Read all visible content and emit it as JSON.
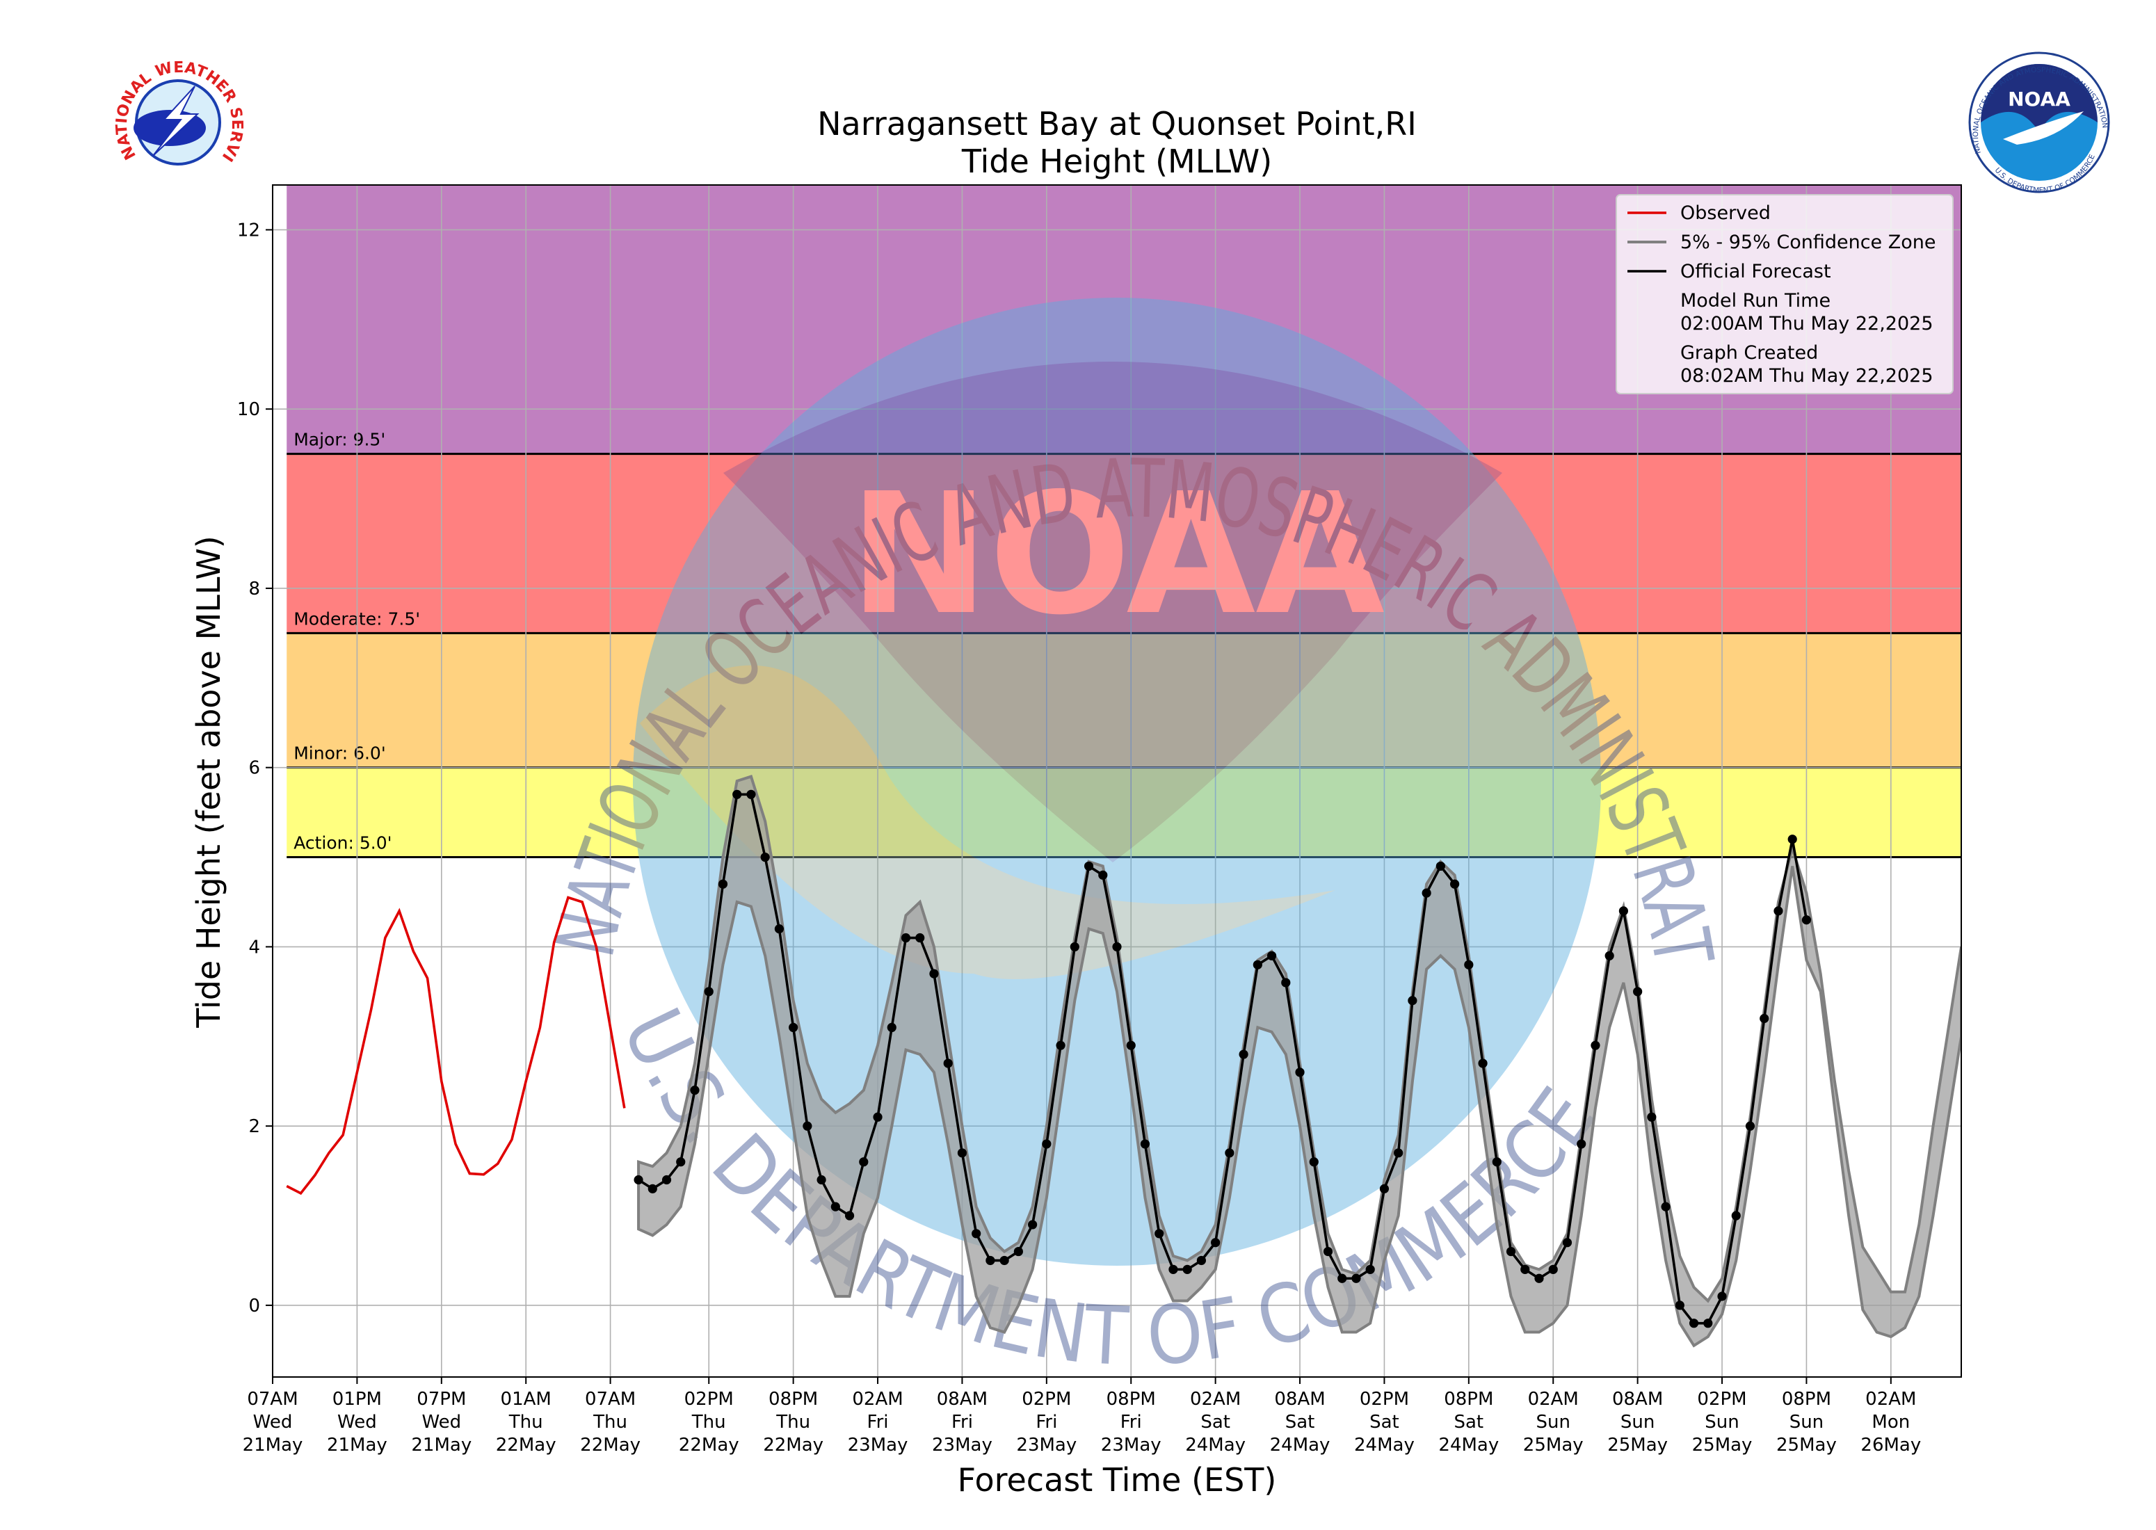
{
  "chart_data": {
    "type": "line",
    "title": "Narragansett Bay at Quonset Point,RI",
    "subtitle": "Tide Height (MLLW)",
    "xlabel": "Forecast Time (EST)",
    "ylabel": "Tide Height (feet above MLLW)",
    "xlim": [
      0,
      120
    ],
    "ylim": [
      -0.8,
      12.5
    ],
    "grid": true,
    "legend": "upper right",
    "yticks": [
      0,
      2,
      4,
      6,
      8,
      10,
      12
    ],
    "xticks": [
      {
        "value": 0,
        "label": "07AM\nWed\n21May"
      },
      {
        "value": 6,
        "label": "01PM\nWed\n21May"
      },
      {
        "value": 12,
        "label": "07PM\nWed\n21May"
      },
      {
        "value": 18,
        "label": "01AM\nThu\n22May"
      },
      {
        "value": 24,
        "label": "07AM\nThu\n22May"
      },
      {
        "value": 31,
        "label": "02PM\nThu\n22May"
      },
      {
        "value": 37,
        "label": "08PM\nThu\n22May"
      },
      {
        "value": 43,
        "label": "02AM\nFri\n23May"
      },
      {
        "value": 49,
        "label": "08AM\nFri\n23May"
      },
      {
        "value": 55,
        "label": "02PM\nFri\n23May"
      },
      {
        "value": 61,
        "label": "08PM\nFri\n23May"
      },
      {
        "value": 67,
        "label": "02AM\nSat\n24May"
      },
      {
        "value": 73,
        "label": "08AM\nSat\n24May"
      },
      {
        "value": 79,
        "label": "02PM\nSat\n24May"
      },
      {
        "value": 85,
        "label": "08PM\nSat\n24May"
      },
      {
        "value": 91,
        "label": "02AM\nSun\n25May"
      },
      {
        "value": 97,
        "label": "08AM\nSun\n25May"
      },
      {
        "value": 103,
        "label": "02PM\nSun\n25May"
      },
      {
        "value": 109,
        "label": "08PM\nSun\n25May"
      },
      {
        "value": 115,
        "label": "02AM\nMon\n26May"
      }
    ],
    "flood_levels": [
      {
        "label": "Action: 5.0'",
        "value": 5,
        "color": "#ffff80"
      },
      {
        "label": "Minor: 6.0'",
        "value": 6,
        "color": "#ffd280"
      },
      {
        "label": "Moderate: 7.5'",
        "value": 7.5,
        "color": "#ff8080"
      },
      {
        "label": "Major: 9.5'",
        "value": 9.5,
        "color": "#c080c0"
      }
    ],
    "series": [
      {
        "name": "Observed",
        "color": "#e00000",
        "x": [
          1,
          2,
          3,
          4,
          5,
          6,
          7,
          8,
          9,
          10,
          11,
          12,
          13,
          14,
          15,
          16,
          17,
          18,
          19,
          20,
          21,
          22,
          23,
          24,
          25
        ],
        "values": [
          1.33,
          1.25,
          1.45,
          1.7,
          1.9,
          2.6,
          3.3,
          4.1,
          4.4,
          3.95,
          3.65,
          2.5,
          1.8,
          1.47,
          1.46,
          1.58,
          1.85,
          2.5,
          3.1,
          4.05,
          4.55,
          4.5,
          4.0,
          3.1,
          2.2
        ]
      },
      {
        "name": "5% - 95% Confidence Zone",
        "color": "#808080",
        "kind": "band",
        "x": [
          26,
          27,
          28,
          29,
          30,
          31,
          32,
          33,
          34,
          35,
          36,
          37,
          38,
          39,
          40,
          41,
          42,
          43,
          44,
          45,
          46,
          47,
          48,
          49,
          50,
          51,
          52,
          53,
          54,
          55,
          56,
          57,
          58,
          59,
          60,
          61,
          62,
          63,
          64,
          65,
          66,
          67,
          68,
          69,
          70,
          71,
          72,
          73,
          74,
          75,
          76,
          77,
          78,
          79,
          80,
          81,
          82,
          83,
          84,
          85,
          86,
          87,
          88,
          89,
          90,
          91,
          92,
          93,
          94,
          95,
          96,
          97,
          98,
          99,
          100,
          101,
          102,
          103,
          104,
          105,
          106,
          107,
          108,
          109,
          110,
          111,
          112,
          113,
          114,
          115,
          116,
          117,
          118,
          119,
          120
        ],
        "upper": [
          1.6,
          1.55,
          1.7,
          2.0,
          2.7,
          3.8,
          5.0,
          5.85,
          5.9,
          5.4,
          4.5,
          3.4,
          2.7,
          2.3,
          2.15,
          2.25,
          2.4,
          2.9,
          3.6,
          4.35,
          4.5,
          4.0,
          3.0,
          2.0,
          1.1,
          0.75,
          0.6,
          0.7,
          1.1,
          2.0,
          3.1,
          4.1,
          4.95,
          4.9,
          4.1,
          3.0,
          2.0,
          1.0,
          0.55,
          0.5,
          0.6,
          0.9,
          1.8,
          2.9,
          3.85,
          3.95,
          3.7,
          2.7,
          1.7,
          0.8,
          0.4,
          0.35,
          0.5,
          1.4,
          1.9,
          3.5,
          4.7,
          4.95,
          4.8,
          3.9,
          2.8,
          1.7,
          0.7,
          0.45,
          0.4,
          0.5,
          0.8,
          1.9,
          3.0,
          4.0,
          4.45,
          3.6,
          2.3,
          1.3,
          0.55,
          0.2,
          0.05,
          0.3,
          1.1,
          2.1,
          3.3,
          4.5,
          5.1,
          4.6,
          3.7,
          2.5,
          1.5,
          0.65,
          0.4,
          0.15,
          0.15,
          0.9,
          2.0,
          3.0,
          4.0
        ],
        "lower": [
          0.85,
          0.78,
          0.9,
          1.1,
          1.8,
          2.8,
          3.8,
          4.5,
          4.45,
          3.9,
          3.0,
          2.0,
          1.0,
          0.5,
          0.1,
          0.1,
          0.8,
          1.2,
          2.0,
          2.85,
          2.8,
          2.6,
          1.8,
          0.9,
          0.1,
          -0.25,
          -0.3,
          0.0,
          0.4,
          1.2,
          2.3,
          3.4,
          4.2,
          4.15,
          3.5,
          2.4,
          1.2,
          0.4,
          0.05,
          0.05,
          0.2,
          0.4,
          1.2,
          2.2,
          3.1,
          3.05,
          2.8,
          2.0,
          1.0,
          0.2,
          -0.3,
          -0.3,
          -0.2,
          0.5,
          1.0,
          2.5,
          3.75,
          3.9,
          3.75,
          3.1,
          2.0,
          0.9,
          0.1,
          -0.3,
          -0.3,
          -0.2,
          0.0,
          1.0,
          2.2,
          3.1,
          3.6,
          2.8,
          1.5,
          0.5,
          -0.2,
          -0.45,
          -0.35,
          -0.1,
          0.5,
          1.5,
          2.6,
          3.8,
          4.9,
          3.85,
          3.5,
          2.2,
          1.0,
          -0.05,
          -0.3,
          -0.35,
          -0.25,
          0.1,
          1.0,
          2.0,
          3.0
        ]
      },
      {
        "name": "Official Forecast",
        "color": "#000000",
        "markers": true,
        "x": [
          26,
          27,
          28,
          29,
          30,
          31,
          32,
          33,
          34,
          35,
          36,
          37,
          38,
          39,
          40,
          41,
          42,
          43,
          44,
          45,
          46,
          47,
          48,
          49,
          50,
          51,
          52,
          53,
          54,
          55,
          56,
          57,
          58,
          59,
          60,
          61,
          62,
          63,
          64,
          65,
          66,
          67,
          68,
          69,
          70,
          71,
          72,
          73,
          74,
          75,
          76,
          77,
          78,
          79,
          80,
          81,
          82,
          83,
          84,
          85,
          86,
          87,
          88,
          89,
          90,
          91,
          92,
          93,
          94,
          95,
          96,
          97,
          98,
          99,
          100,
          101,
          102,
          103,
          104,
          105,
          106,
          107,
          108,
          109
        ],
        "values": [
          1.4,
          1.3,
          1.4,
          1.6,
          2.4,
          3.5,
          4.7,
          5.7,
          5.7,
          5.0,
          4.2,
          3.1,
          2.0,
          1.4,
          1.1,
          1.0,
          1.6,
          2.1,
          3.1,
          4.1,
          4.1,
          3.7,
          2.7,
          1.7,
          0.8,
          0.5,
          0.5,
          0.6,
          0.9,
          1.8,
          2.9,
          4.0,
          4.9,
          4.8,
          4.0,
          2.9,
          1.8,
          0.8,
          0.4,
          0.4,
          0.5,
          0.7,
          1.7,
          2.8,
          3.8,
          3.9,
          3.6,
          2.6,
          1.6,
          0.6,
          0.3,
          0.3,
          0.4,
          1.3,
          1.7,
          3.4,
          4.6,
          4.9,
          4.7,
          3.8,
          2.7,
          1.6,
          0.6,
          0.4,
          0.3,
          0.4,
          0.7,
          1.8,
          2.9,
          3.9,
          4.4,
          3.5,
          2.1,
          1.1,
          0.0,
          -0.2,
          -0.2,
          0.1,
          1.0,
          2.0,
          3.2,
          4.4,
          5.2,
          4.3
        ]
      }
    ],
    "annotations": [
      "Model Run Time",
      "02:00AM Thu May 22,2025",
      "Graph Created",
      "08:02AM Thu May 22,2025"
    ]
  },
  "watermark": {
    "top": "NATIONAL OCEANIC AND ATMOSPHERIC ADMINISTRATION",
    "bottom": "U.S. DEPARTMENT OF COMMERCE",
    "center": "NOAA"
  },
  "logos": {
    "nws": "NATIONAL WEATHER SERVICE",
    "noaa_top": "NATIONAL OCEANIC AND ATMOSPHERIC ADMINISTRATION",
    "noaa_bottom": "U.S. DEPARTMENT OF COMMERCE",
    "noaa_center": "NOAA"
  }
}
